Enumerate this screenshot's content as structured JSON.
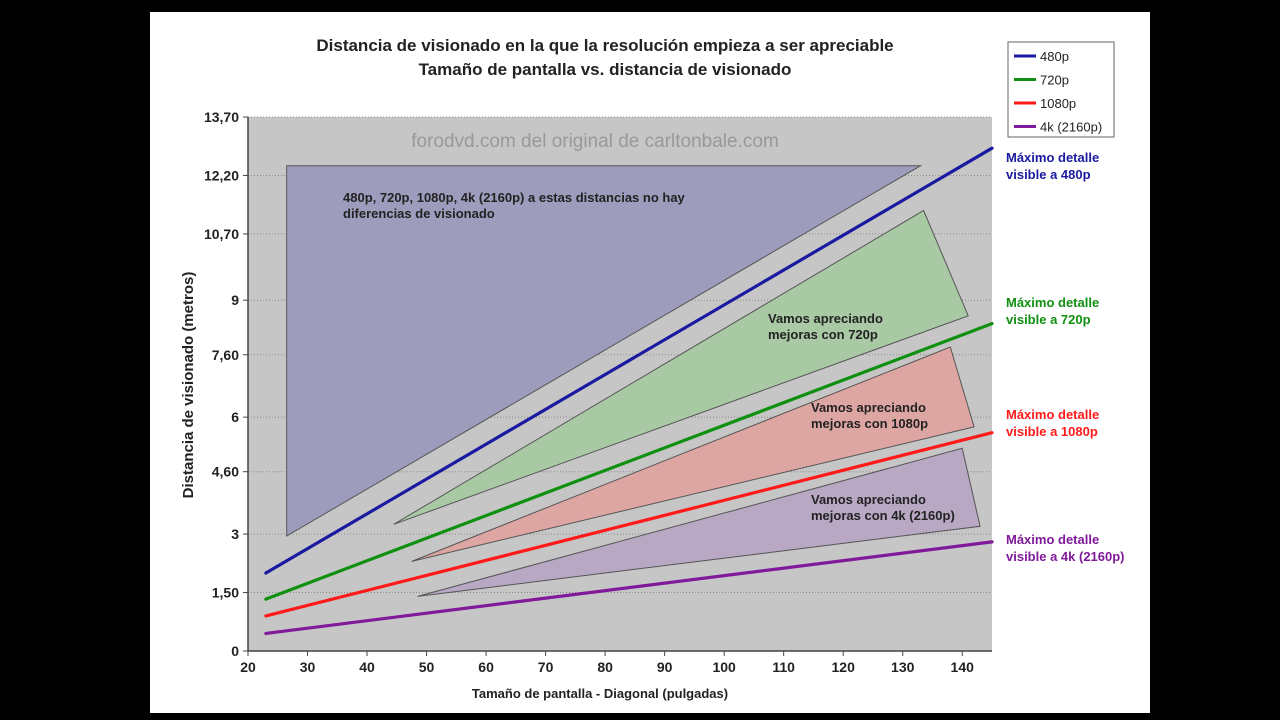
{
  "chart_data": {
    "type": "line",
    "title": "Distancia de visionado en la que la resolución empieza a ser apreciable",
    "subtitle": "Tamaño de pantalla vs. distancia de visionado",
    "xlabel": "Tamaño de pantalla - Diagonal (pulgadas)",
    "ylabel": "Distancia de visionado (metros)",
    "xlim": [
      20,
      145
    ],
    "ylim": [
      0,
      13.7
    ],
    "x_ticks": [
      20,
      30,
      40,
      50,
      60,
      70,
      80,
      90,
      100,
      110,
      120,
      130,
      140
    ],
    "y_ticks": [
      0,
      1.5,
      3,
      4.6,
      6,
      7.6,
      9,
      10.7,
      12.2,
      13.7
    ],
    "y_tick_labels": [
      "0",
      "1,50",
      "3",
      "4,60",
      "6",
      "7,60",
      "9",
      "10,70",
      "12,20",
      "13,70"
    ],
    "grid": "horizontal dotted",
    "watermark": "forodvd.com del original de carltonbale.com",
    "legend_position": "top-right",
    "series": [
      {
        "name": "480p",
        "color": "#1a1aa0",
        "x": [
          23,
          145
        ],
        "y": [
          2.0,
          12.9
        ],
        "end_label": [
          "Máximo detalle",
          "visible a 480p"
        ]
      },
      {
        "name": "720p",
        "color": "#109010",
        "x": [
          23,
          145
        ],
        "y": [
          1.33,
          8.4
        ],
        "end_label": [
          "Máximo detalle",
          "visible a 720p"
        ]
      },
      {
        "name": "1080p",
        "color": "#ff1a1a",
        "x": [
          23,
          145
        ],
        "y": [
          0.9,
          5.6
        ],
        "end_label": [
          "Máximo detalle",
          "visible a 1080p"
        ]
      },
      {
        "name": "4k (2160p)",
        "color": "#801a9a",
        "x": [
          23,
          145
        ],
        "y": [
          0.45,
          2.8
        ],
        "end_label": [
          "Máximo detalle",
          "visible a 4k (2160p)"
        ]
      }
    ],
    "regions": [
      {
        "fill": "#9e9cbc",
        "points": [
          [
            26.5,
            12.45
          ],
          [
            133,
            12.45
          ],
          [
            26.5,
            2.95
          ]
        ],
        "text": [
          "480p, 720p, 1080p, 4k (2160p) a estas distancias no hay",
          "diferencias de visionado"
        ]
      },
      {
        "fill": "#a9c9a5",
        "points": [
          [
            44.5,
            3.25
          ],
          [
            133.5,
            11.3
          ],
          [
            141,
            8.6
          ]
        ],
        "text": [
          "Vamos apreciando",
          "mejoras con 720p"
        ]
      },
      {
        "fill": "#dea6a3",
        "points": [
          [
            47.5,
            2.3
          ],
          [
            138,
            7.8
          ],
          [
            142,
            5.75
          ]
        ],
        "text": [
          "Vamos apreciando",
          "mejoras con 1080p"
        ]
      },
      {
        "fill": "#b8a8c4",
        "points": [
          [
            48.5,
            1.4
          ],
          [
            140,
            5.2
          ],
          [
            143,
            3.2
          ]
        ],
        "text": [
          "Vamos apreciando",
          "mejoras con 4k (2160p)"
        ]
      }
    ]
  }
}
